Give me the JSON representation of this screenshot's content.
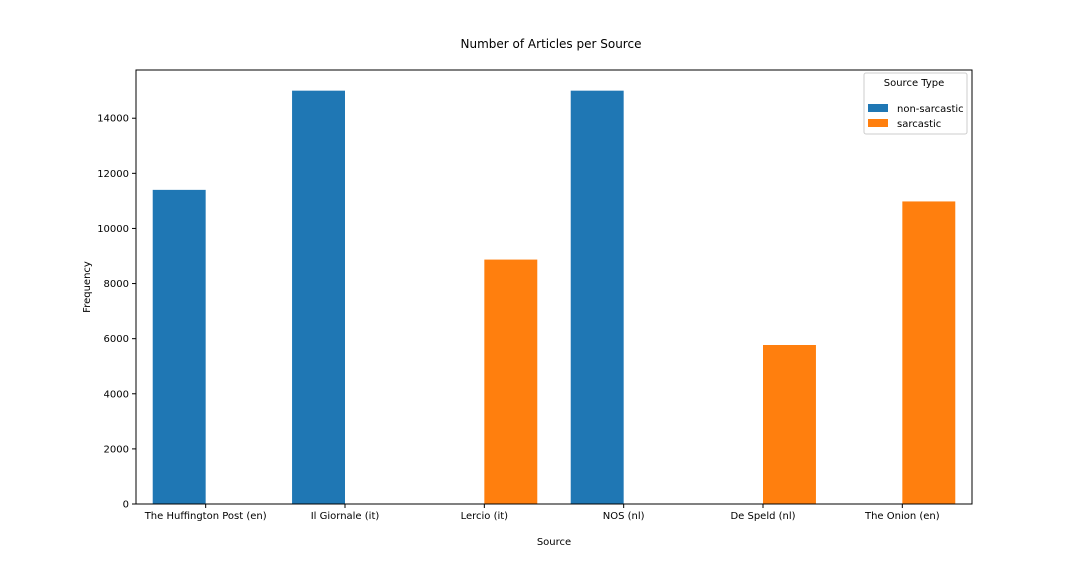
{
  "chart_data": {
    "type": "bar",
    "title": "Number of Articles per Source",
    "xlabel": "Source",
    "ylabel": "Frequency",
    "categories": [
      "The Huffington Post (en)",
      "Il Giornale (it)",
      "Lercio (it)",
      "NOS (nl)",
      "De Speld (nl)",
      "The Onion (en)"
    ],
    "series": [
      {
        "name": "non-sarcastic",
        "color": "#1f77b4",
        "values": [
          11400,
          15000,
          0,
          15000,
          0,
          0
        ]
      },
      {
        "name": "sarcastic",
        "color": "#ff7f0e",
        "values": [
          0,
          0,
          8870,
          0,
          5770,
          10980
        ]
      }
    ],
    "ylim": [
      0,
      15750
    ],
    "yticks": [
      0,
      2000,
      4000,
      6000,
      8000,
      10000,
      12000,
      14000
    ],
    "legend": {
      "title": "Source Type",
      "position": "top-right"
    },
    "grid": false
  }
}
